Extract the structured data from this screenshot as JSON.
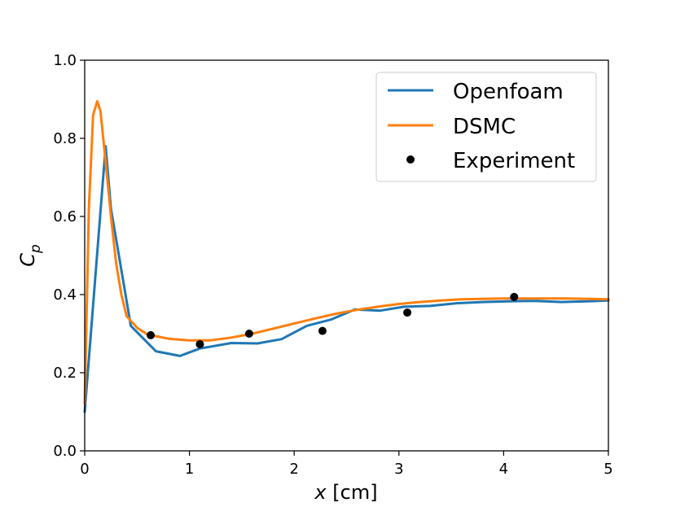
{
  "chart_data": {
    "type": "line",
    "title": "",
    "xlabel": {
      "var": "x",
      "unit": " [cm]"
    },
    "ylabel": {
      "main": "C",
      "sub": "p"
    },
    "xlim": [
      0,
      5
    ],
    "ylim": [
      0,
      1
    ],
    "xticks": [
      0,
      1,
      2,
      3,
      4,
      5
    ],
    "yticks": [
      0.0,
      0.2,
      0.4,
      0.6,
      0.8,
      1.0
    ],
    "xtick_labels": [
      "0",
      "1",
      "2",
      "3",
      "4",
      "5"
    ],
    "ytick_labels": [
      "0.0",
      "0.2",
      "0.4",
      "0.6",
      "0.8",
      "1.0"
    ],
    "grid": false,
    "legend_position": "top-right",
    "series": [
      {
        "name": "Openfoam",
        "color": "#1f77b4",
        "kind": "line",
        "x": [
          0.0,
          0.2,
          0.25,
          0.32,
          0.44,
          0.68,
          0.91,
          1.1,
          1.4,
          1.65,
          1.88,
          2.12,
          2.35,
          2.58,
          2.82,
          3.05,
          3.3,
          3.55,
          3.8,
          4.05,
          4.3,
          4.55,
          4.8,
          5.0
        ],
        "y": [
          0.1,
          0.78,
          0.62,
          0.51,
          0.32,
          0.255,
          0.243,
          0.262,
          0.276,
          0.275,
          0.286,
          0.32,
          0.336,
          0.362,
          0.359,
          0.369,
          0.371,
          0.378,
          0.381,
          0.383,
          0.384,
          0.381,
          0.383,
          0.385
        ]
      },
      {
        "name": "DSMC",
        "color": "#ff7f0e",
        "kind": "line",
        "x": [
          0.0,
          0.04,
          0.08,
          0.12,
          0.15,
          0.2,
          0.25,
          0.3,
          0.35,
          0.4,
          0.5,
          0.6,
          0.8,
          1.0,
          1.2,
          1.4,
          1.6,
          1.8,
          2.0,
          2.2,
          2.4,
          2.6,
          2.8,
          3.0,
          3.2,
          3.4,
          3.6,
          3.8,
          4.0,
          4.2,
          4.4,
          4.6,
          4.8,
          5.0
        ],
        "y": [
          0.12,
          0.62,
          0.86,
          0.895,
          0.87,
          0.74,
          0.6,
          0.48,
          0.4,
          0.345,
          0.315,
          0.298,
          0.287,
          0.283,
          0.283,
          0.29,
          0.3,
          0.313,
          0.326,
          0.339,
          0.351,
          0.361,
          0.369,
          0.376,
          0.381,
          0.385,
          0.388,
          0.389,
          0.39,
          0.39,
          0.39,
          0.39,
          0.389,
          0.388
        ]
      },
      {
        "name": "Experiment",
        "color": "#000000",
        "kind": "scatter",
        "x": [
          0.63,
          1.1,
          1.57,
          2.27,
          3.08,
          4.1
        ],
        "y": [
          0.296,
          0.273,
          0.3,
          0.307,
          0.354,
          0.394
        ]
      }
    ]
  }
}
